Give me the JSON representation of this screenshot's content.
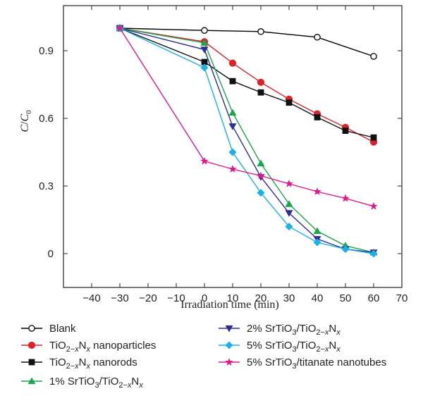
{
  "chart_data": {
    "type": "line",
    "xlabel": "Irradiation time (min)",
    "ylabel": "C/C0",
    "xlim": [
      -50,
      70
    ],
    "ylim": [
      -0.15,
      1.1
    ],
    "xticks": [
      -40,
      -30,
      -20,
      -10,
      0,
      10,
      20,
      30,
      40,
      50,
      60,
      70
    ],
    "yticks": [
      0,
      0.3,
      0.6,
      0.9
    ],
    "ytick_labels": [
      "0",
      "0.3",
      "0.6",
      "0.9"
    ],
    "grid": false,
    "legend_position": "below",
    "series": [
      {
        "name": "Blank",
        "marker": "circle-open",
        "color": "#000000",
        "x": [
          -30,
          0,
          20,
          40,
          60
        ],
        "y": [
          1.0,
          0.99,
          0.985,
          0.96,
          0.875
        ]
      },
      {
        "name": "TiO2−xNx nanoparticles",
        "marker": "circle",
        "color": "#e0202a",
        "x": [
          -30,
          0,
          10,
          20,
          30,
          40,
          50,
          60
        ],
        "y": [
          1.0,
          0.94,
          0.845,
          0.76,
          0.685,
          0.62,
          0.56,
          0.495
        ]
      },
      {
        "name": "TiO2−xNx nanorods",
        "marker": "square",
        "color": "#111111",
        "x": [
          -30,
          0,
          10,
          20,
          30,
          40,
          50,
          60
        ],
        "y": [
          1.0,
          0.85,
          0.765,
          0.715,
          0.67,
          0.605,
          0.545,
          0.515
        ]
      },
      {
        "name": "1% SrTiO3/TiO2−xNx",
        "marker": "triangle-up",
        "color": "#1aa64a",
        "x": [
          -30,
          0,
          10,
          20,
          30,
          40,
          50,
          60
        ],
        "y": [
          1.0,
          0.935,
          0.625,
          0.4,
          0.22,
          0.1,
          0.035,
          0.005
        ]
      },
      {
        "name": "2% SrTiO3/TiO2−xNx",
        "marker": "triangle-down",
        "color": "#2f2f8f",
        "x": [
          -30,
          0,
          10,
          20,
          30,
          40,
          50,
          60
        ],
        "y": [
          1.0,
          0.905,
          0.565,
          0.34,
          0.18,
          0.065,
          0.02,
          0.005
        ]
      },
      {
        "name": "5% SrTiO3/TiO2−xNx",
        "marker": "diamond",
        "color": "#1ab0e8",
        "x": [
          -30,
          0,
          10,
          20,
          30,
          40,
          50,
          60
        ],
        "y": [
          1.0,
          0.825,
          0.45,
          0.27,
          0.12,
          0.05,
          0.02,
          0.0
        ]
      },
      {
        "name": "5% SrTiO3/titanate nanotubes",
        "marker": "star",
        "color": "#e0188c",
        "x": [
          -30,
          0,
          10,
          20,
          30,
          40,
          50,
          60
        ],
        "y": [
          1.0,
          0.41,
          0.375,
          0.345,
          0.31,
          0.275,
          0.245,
          0.21
        ]
      }
    ]
  }
}
